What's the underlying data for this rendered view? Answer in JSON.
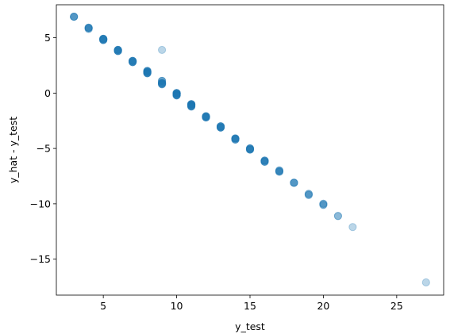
{
  "chart_data": {
    "type": "scatter",
    "xlabel": "y_test",
    "ylabel": "y_hat - y_test",
    "xlim": [
      1.8,
      28.2
    ],
    "ylim": [
      -18.25,
      7.98
    ],
    "xticks": [
      5,
      10,
      15,
      20,
      25
    ],
    "yticks": [
      5,
      0,
      -5,
      -10,
      -15
    ],
    "grid": false,
    "point_color": "#1f77b4",
    "point_alpha": 0.3,
    "points": [
      {
        "x": 3,
        "y": 6.9,
        "n": 4
      },
      {
        "x": 4,
        "y": 5.9,
        "n": 4
      },
      {
        "x": 4,
        "y": 5.8,
        "n": 2
      },
      {
        "x": 5,
        "y": 4.9,
        "n": 5
      },
      {
        "x": 5,
        "y": 4.8,
        "n": 4
      },
      {
        "x": 6,
        "y": 3.9,
        "n": 5
      },
      {
        "x": 6,
        "y": 3.8,
        "n": 4
      },
      {
        "x": 7,
        "y": 2.9,
        "n": 5
      },
      {
        "x": 7,
        "y": 2.8,
        "n": 4
      },
      {
        "x": 8,
        "y": 2.0,
        "n": 4
      },
      {
        "x": 8,
        "y": 1.9,
        "n": 5
      },
      {
        "x": 8,
        "y": 1.8,
        "n": 4
      },
      {
        "x": 9,
        "y": 3.9,
        "n": 1
      },
      {
        "x": 9,
        "y": 1.1,
        "n": 3
      },
      {
        "x": 9,
        "y": 0.9,
        "n": 5
      },
      {
        "x": 9,
        "y": 0.8,
        "n": 3
      },
      {
        "x": 10,
        "y": 0.0,
        "n": 5
      },
      {
        "x": 10,
        "y": -0.1,
        "n": 4
      },
      {
        "x": 10,
        "y": -0.2,
        "n": 4
      },
      {
        "x": 11,
        "y": -1.0,
        "n": 5
      },
      {
        "x": 11,
        "y": -1.1,
        "n": 5
      },
      {
        "x": 11,
        "y": -1.2,
        "n": 4
      },
      {
        "x": 12,
        "y": -2.1,
        "n": 5
      },
      {
        "x": 12,
        "y": -2.2,
        "n": 4
      },
      {
        "x": 13,
        "y": -3.0,
        "n": 4
      },
      {
        "x": 13,
        "y": -3.1,
        "n": 5
      },
      {
        "x": 14,
        "y": -4.1,
        "n": 5
      },
      {
        "x": 14,
        "y": -4.2,
        "n": 3
      },
      {
        "x": 15,
        "y": -5.0,
        "n": 4
      },
      {
        "x": 15,
        "y": -5.1,
        "n": 4
      },
      {
        "x": 16,
        "y": -6.1,
        "n": 4
      },
      {
        "x": 16,
        "y": -6.2,
        "n": 3
      },
      {
        "x": 17,
        "y": -7.0,
        "n": 3
      },
      {
        "x": 17,
        "y": -7.1,
        "n": 3
      },
      {
        "x": 18,
        "y": -8.1,
        "n": 4
      },
      {
        "x": 19,
        "y": -9.1,
        "n": 2
      },
      {
        "x": 19,
        "y": -9.2,
        "n": 2
      },
      {
        "x": 20,
        "y": -10.0,
        "n": 2
      },
      {
        "x": 20,
        "y": -10.1,
        "n": 2
      },
      {
        "x": 21,
        "y": -11.1,
        "n": 2
      },
      {
        "x": 22,
        "y": -12.1,
        "n": 1
      },
      {
        "x": 27,
        "y": -17.1,
        "n": 1
      }
    ]
  }
}
